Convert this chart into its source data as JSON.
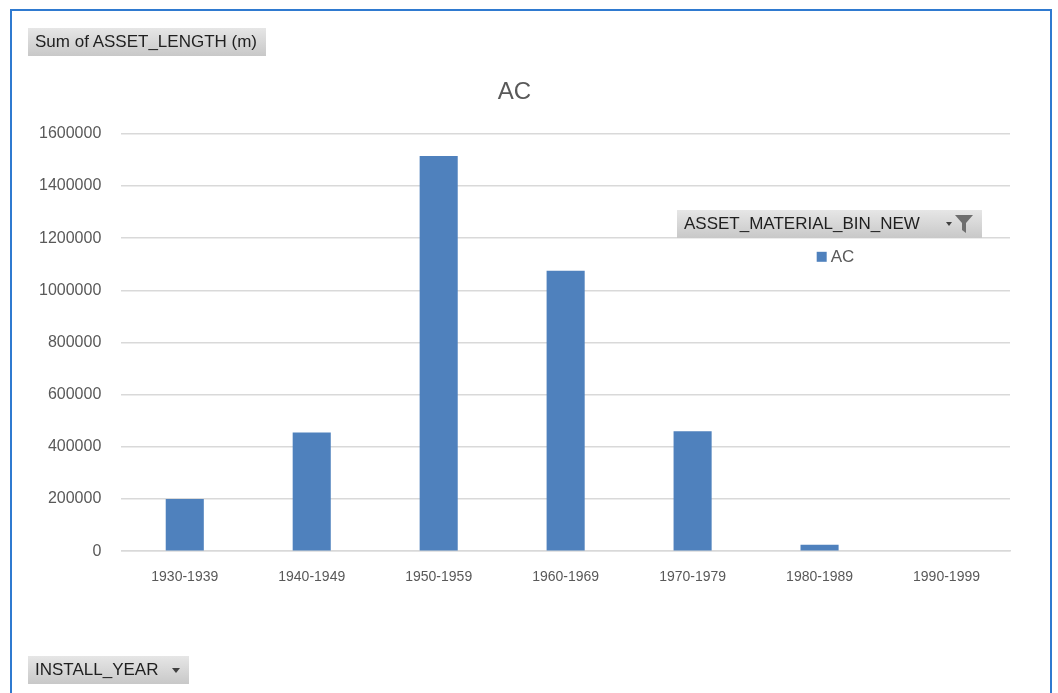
{
  "chart_data": {
    "type": "bar",
    "title": "AC",
    "ylabel": "Sum of ASSET_LENGTH (m)",
    "legend_title": "ASSET_MATERIAL_BIN_NEW",
    "annotations": [
      "INSTALL_YEAR"
    ],
    "categories": [
      "1930-1939",
      "1940-1949",
      "1950-1959",
      "1960-1969",
      "1970-1979",
      "1980-1989",
      "1990-1999"
    ],
    "series": [
      {
        "name": "AC",
        "color": "#4f81bd",
        "values": [
          200000,
          455000,
          1515000,
          1075000,
          460000,
          25000,
          0
        ]
      }
    ],
    "ylim": [
      0,
      1600000
    ],
    "yticks": [
      0,
      200000,
      400000,
      600000,
      800000,
      1000000,
      1200000,
      1400000,
      1600000
    ],
    "grid": "y",
    "legend": "top right"
  }
}
